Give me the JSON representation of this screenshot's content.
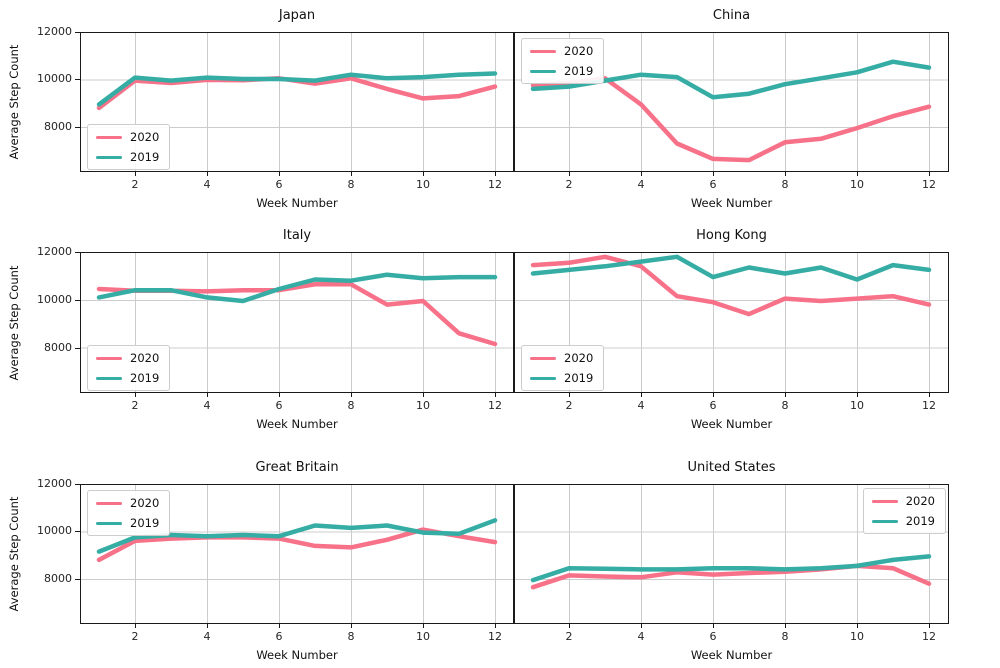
{
  "axes": {
    "xlabel": "Week Number",
    "ylabel": "Average Step Count",
    "xtick_labels": [
      "2",
      "4",
      "6",
      "8",
      "10",
      "12"
    ],
    "ytick_labels": [
      "8000",
      "10000",
      "12000"
    ]
  },
  "colors": {
    "series_2020": "#f77189",
    "series_2019": "#36ada4",
    "grid": "#cccccc",
    "spine": "#1a1a1a"
  },
  "chart_data": [
    {
      "type": "line",
      "title": "Japan",
      "xlabel": "Week Number",
      "ylabel": "Average Step Count",
      "x": [
        1,
        2,
        3,
        4,
        5,
        6,
        7,
        8,
        9,
        10,
        11,
        12
      ],
      "xticks": [
        2,
        4,
        6,
        8,
        10,
        12
      ],
      "yticks": [
        8000,
        10000,
        12000
      ],
      "ylim": [
        6100,
        12000
      ],
      "grid": true,
      "legend_position": "lower-left",
      "series": [
        {
          "name": "2020",
          "color": "#f77189",
          "values": [
            8800,
            9950,
            9850,
            9980,
            9970,
            10050,
            9820,
            10050,
            9600,
            9200,
            9300,
            9700
          ]
        },
        {
          "name": "2019",
          "color": "#36ada4",
          "values": [
            8950,
            10080,
            9950,
            10080,
            10020,
            10020,
            9950,
            10200,
            10050,
            10100,
            10200,
            10250
          ]
        }
      ]
    },
    {
      "type": "line",
      "title": "China",
      "xlabel": "Week Number",
      "ylabel": "Average Step Count",
      "x": [
        1,
        2,
        3,
        4,
        5,
        6,
        7,
        8,
        9,
        10,
        11,
        12
      ],
      "xticks": [
        2,
        4,
        6,
        8,
        10,
        12
      ],
      "yticks": [
        8000,
        10000,
        12000
      ],
      "ylim": [
        6100,
        12000
      ],
      "grid": true,
      "legend_position": "upper-left",
      "series": [
        {
          "name": "2020",
          "color": "#f77189",
          "values": [
            9750,
            9850,
            10050,
            8950,
            7300,
            6650,
            6600,
            7350,
            7500,
            7950,
            8450,
            8850
          ]
        },
        {
          "name": "2019",
          "color": "#36ada4",
          "values": [
            9600,
            9700,
            9950,
            10200,
            10100,
            9250,
            9400,
            9800,
            10050,
            10300,
            10750,
            10500
          ]
        }
      ]
    },
    {
      "type": "line",
      "title": "Italy",
      "xlabel": "Week Number",
      "ylabel": "Average Step Count",
      "x": [
        1,
        2,
        3,
        4,
        5,
        6,
        7,
        8,
        9,
        10,
        11,
        12
      ],
      "xticks": [
        2,
        4,
        6,
        8,
        10,
        12
      ],
      "yticks": [
        8000,
        10000,
        12000
      ],
      "ylim": [
        6100,
        12000
      ],
      "grid": true,
      "legend_position": "lower-left",
      "series": [
        {
          "name": "2020",
          "color": "#f77189",
          "values": [
            10450,
            10380,
            10380,
            10350,
            10400,
            10400,
            10650,
            10650,
            9800,
            9950,
            8600,
            8150
          ]
        },
        {
          "name": "2019",
          "color": "#36ada4",
          "values": [
            10100,
            10400,
            10400,
            10100,
            9950,
            10450,
            10850,
            10800,
            11050,
            10900,
            10950,
            10950
          ]
        }
      ]
    },
    {
      "type": "line",
      "title": "Hong Kong",
      "xlabel": "Week Number",
      "ylabel": "Average Step Count",
      "x": [
        1,
        2,
        3,
        4,
        5,
        6,
        7,
        8,
        9,
        10,
        11,
        12
      ],
      "xticks": [
        2,
        4,
        6,
        8,
        10,
        12
      ],
      "yticks": [
        8000,
        10000,
        12000
      ],
      "ylim": [
        6100,
        12000
      ],
      "grid": true,
      "legend_position": "lower-left",
      "series": [
        {
          "name": "2020",
          "color": "#f77189",
          "values": [
            11450,
            11550,
            11800,
            11400,
            10150,
            9900,
            9400,
            10050,
            9950,
            10050,
            10150,
            9800
          ]
        },
        {
          "name": "2019",
          "color": "#36ada4",
          "values": [
            11100,
            11250,
            11400,
            11600,
            11800,
            10950,
            11350,
            11100,
            11350,
            10850,
            11450,
            11250
          ]
        }
      ]
    },
    {
      "type": "line",
      "title": "Great Britain",
      "xlabel": "Week Number",
      "ylabel": "Average Step Count",
      "x": [
        1,
        2,
        3,
        4,
        5,
        6,
        7,
        8,
        9,
        10,
        11,
        12
      ],
      "xticks": [
        2,
        4,
        6,
        8,
        10,
        12
      ],
      "yticks": [
        8000,
        10000,
        12000
      ],
      "ylim": [
        6100,
        12000
      ],
      "grid": true,
      "legend_position": "upper-left",
      "series": [
        {
          "name": "2020",
          "color": "#f77189",
          "values": [
            8800,
            9600,
            9700,
            9750,
            9750,
            9700,
            9390,
            9330,
            9650,
            10080,
            9800,
            9550
          ]
        },
        {
          "name": "2019",
          "color": "#36ada4",
          "values": [
            9150,
            9750,
            9850,
            9800,
            9850,
            9800,
            10250,
            10150,
            10250,
            9950,
            9900,
            10470
          ]
        }
      ]
    },
    {
      "type": "line",
      "title": "United States",
      "xlabel": "Week Number",
      "ylabel": "Average Step Count",
      "x": [
        1,
        2,
        3,
        4,
        5,
        6,
        7,
        8,
        9,
        10,
        11,
        12
      ],
      "xticks": [
        2,
        4,
        6,
        8,
        10,
        12
      ],
      "yticks": [
        8000,
        10000,
        12000
      ],
      "ylim": [
        6100,
        12000
      ],
      "grid": true,
      "legend_position": "upper-right",
      "series": [
        {
          "name": "2020",
          "color": "#f77189",
          "values": [
            7650,
            8150,
            8100,
            8070,
            8280,
            8180,
            8250,
            8300,
            8400,
            8550,
            8450,
            7800
          ]
        },
        {
          "name": "2019",
          "color": "#36ada4",
          "values": [
            7950,
            8450,
            8430,
            8400,
            8400,
            8450,
            8450,
            8400,
            8450,
            8550,
            8800,
            8950
          ]
        }
      ]
    }
  ]
}
